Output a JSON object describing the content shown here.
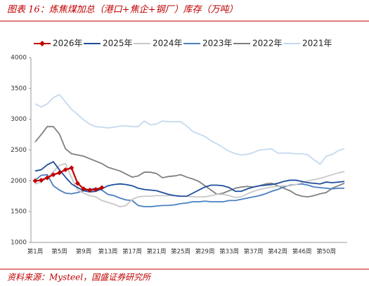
{
  "chart_data": {
    "type": "line",
    "title": "图表 16：炼焦煤加总（港口+焦企+钢厂）库存（万吨）",
    "source": "资料来源：Mysteel，国盛证券研究所",
    "categories": [
      "第1周",
      null,
      null,
      null,
      "第5周",
      null,
      null,
      null,
      "第9周",
      null,
      null,
      null,
      "第13周",
      null,
      null,
      null,
      "第17周",
      null,
      null,
      null,
      "第21周",
      null,
      null,
      null,
      "第25周",
      null,
      null,
      null,
      "第29周",
      null,
      null,
      null,
      "第33周",
      null,
      null,
      null,
      "第37周",
      null,
      null,
      null,
      "第42周",
      null,
      null,
      null,
      "第46周",
      null,
      null,
      null,
      "第50周",
      null,
      null,
      null
    ],
    "ylim": [
      1000,
      4000
    ],
    "yticks": [
      1000,
      1500,
      2000,
      2500,
      3000,
      3500,
      4000
    ],
    "grid": false,
    "legend": "top",
    "series": [
      {
        "name": "2026年",
        "color": "#c00000",
        "marker": "diamond",
        "values": [
          2000,
          2010,
          2050,
          2100,
          2130,
          2180,
          2210,
          1960,
          1870,
          1850,
          1860,
          1890,
          null,
          null,
          null,
          null,
          null,
          null,
          null,
          null,
          null,
          null,
          null,
          null,
          null,
          null,
          null,
          null,
          null,
          null,
          null,
          null,
          null,
          null,
          null,
          null,
          null,
          null,
          null,
          null,
          null,
          null,
          null,
          null,
          null,
          null,
          null,
          null,
          null,
          null,
          null,
          null
        ]
      },
      {
        "name": "2025年",
        "color": "#1f4e9c",
        "values": [
          2160,
          2180,
          2260,
          2310,
          2180,
          2060,
          1950,
          1890,
          1840,
          1820,
          1830,
          1870,
          1920,
          1940,
          1950,
          1940,
          1920,
          1880,
          1860,
          1850,
          1840,
          1810,
          1780,
          1760,
          1750,
          1750,
          1800,
          1850,
          1900,
          1930,
          1930,
          1920,
          1890,
          1830,
          1830,
          1870,
          1900,
          1920,
          1930,
          1940,
          1960,
          1990,
          2010,
          2010,
          1990,
          1970,
          1960,
          1950,
          1980,
          1970,
          1980,
          1990
        ]
      },
      {
        "name": "2024年",
        "color": "#c8c8c8",
        "values": [
          1950,
          1980,
          2050,
          2150,
          2250,
          2280,
          2050,
          1850,
          1800,
          1760,
          1740,
          1680,
          1650,
          1620,
          1580,
          1600,
          1700,
          1740,
          1750,
          1750,
          1760,
          1760,
          1760,
          1760,
          1750,
          1750,
          1740,
          1740,
          1740,
          1760,
          1780,
          1780,
          1760,
          1730,
          1740,
          1790,
          1830,
          1860,
          1880,
          1900,
          1910,
          1920,
          1920,
          1940,
          1970,
          2000,
          2020,
          2040,
          2070,
          2100,
          2130,
          2150
        ]
      },
      {
        "name": "2023年",
        "color": "#4a7fc0",
        "values": [
          2010,
          2090,
          2100,
          1920,
          1850,
          1800,
          1790,
          1810,
          1840,
          1860,
          1880,
          1850,
          1780,
          1760,
          1720,
          1690,
          1680,
          1600,
          1580,
          1580,
          1590,
          1600,
          1600,
          1610,
          1630,
          1640,
          1660,
          1660,
          1670,
          1660,
          1660,
          1660,
          1680,
          1680,
          1700,
          1720,
          1740,
          1760,
          1790,
          1830,
          1860,
          1900,
          1930,
          1940,
          1950,
          1930,
          1900,
          1890,
          1880,
          1870,
          1880,
          1880
        ]
      },
      {
        "name": "2022年",
        "color": "#808080",
        "values": [
          2630,
          2750,
          2880,
          2880,
          2760,
          2520,
          2440,
          2420,
          2400,
          2360,
          2320,
          2280,
          2220,
          2190,
          2160,
          2110,
          2060,
          2080,
          2140,
          2140,
          2120,
          2050,
          2070,
          2080,
          2100,
          2060,
          2030,
          1990,
          1920,
          1850,
          1780,
          1800,
          1840,
          1880,
          1900,
          1910,
          1900,
          1920,
          1950,
          1960,
          1920,
          1880,
          1840,
          1780,
          1750,
          1740,
          1760,
          1790,
          1810,
          1880,
          1920,
          1960
        ]
      },
      {
        "name": "2021年",
        "color": "#c5d9ef",
        "values": [
          3250,
          3200,
          3250,
          3350,
          3400,
          3280,
          3160,
          3080,
          2990,
          2920,
          2880,
          2870,
          2860,
          2870,
          2890,
          2890,
          2880,
          2880,
          2970,
          2910,
          2920,
          2970,
          2960,
          2960,
          2960,
          2890,
          2800,
          2760,
          2720,
          2650,
          2600,
          2540,
          2480,
          2440,
          2420,
          2430,
          2460,
          2500,
          2510,
          2520,
          2450,
          2450,
          2450,
          2440,
          2440,
          2420,
          2340,
          2270,
          2400,
          2430,
          2490,
          2520
        ]
      }
    ]
  }
}
